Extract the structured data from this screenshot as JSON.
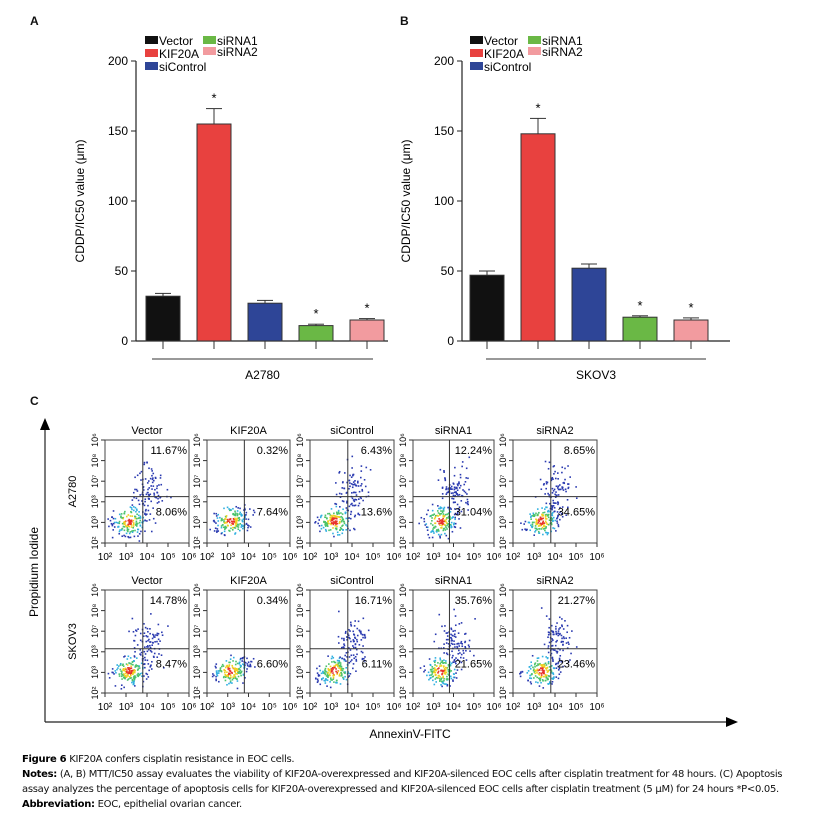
{
  "panels": {
    "a": "A",
    "b": "B",
    "c": "C"
  },
  "legend": {
    "items": [
      {
        "label": "Vector",
        "color": "#111111"
      },
      {
        "label": "KIF20A",
        "color": "#e8413f"
      },
      {
        "label": "siControl",
        "color": "#2e4597"
      },
      {
        "label": "siRNA1",
        "color": "#6ab845"
      },
      {
        "label": "siRNA2",
        "color": "#f29b9f"
      }
    ]
  },
  "chart_data": [
    {
      "type": "bar",
      "panel": "A",
      "ylabel": "CDDP/IC50 value (μm)",
      "xlabel": "A2780",
      "ylim": [
        0,
        200
      ],
      "yticks": [
        "0",
        "50",
        "100",
        "150",
        "200"
      ],
      "categories": [
        "Vector",
        "KIF20A",
        "siControl",
        "siRNA1",
        "siRNA2"
      ],
      "values": [
        32,
        155,
        27,
        11,
        15
      ],
      "errors": [
        2,
        11,
        2,
        1,
        1
      ],
      "significance": [
        "",
        "*",
        "",
        "*",
        "*"
      ]
    },
    {
      "type": "bar",
      "panel": "B",
      "ylabel": "CDDP/IC50 value (μm)",
      "xlabel": "SKOV3",
      "ylim": [
        0,
        200
      ],
      "yticks": [
        "0",
        "50",
        "100",
        "150",
        "200"
      ],
      "categories": [
        "Vector",
        "KIF20A",
        "siControl",
        "siRNA1",
        "siRNA2"
      ],
      "values": [
        47,
        148,
        52,
        17,
        15
      ],
      "errors": [
        3,
        11,
        3,
        1,
        1.5
      ],
      "significance": [
        "",
        "*",
        "",
        "*",
        "*"
      ]
    }
  ],
  "flow": {
    "y_axis_label": "Propidium Iodide",
    "x_axis_label": "AnnexinV-FITC",
    "x_ticks": [
      "10²",
      "10³",
      "10⁴",
      "10⁵",
      "10⁶"
    ],
    "y_ticks": [
      "10²",
      "10³",
      "10³",
      "10⁷",
      "10⁸",
      "10⁶"
    ],
    "rows": [
      {
        "label": "A2780",
        "plots": [
          {
            "title": "Vector",
            "upper_right": "11.67%",
            "lower_right": "8.06%"
          },
          {
            "title": "KIF20A",
            "upper_right": "0.32%",
            "lower_right": "7.64%"
          },
          {
            "title": "siControl",
            "upper_right": "6.43%",
            "lower_right": "13.6%"
          },
          {
            "title": "siRNA1",
            "upper_right": "12.24%",
            "lower_right": "31.04%"
          },
          {
            "title": "siRNA2",
            "upper_right": "8.65%",
            "lower_right": "34.65%"
          }
        ]
      },
      {
        "label": "SKOV3",
        "plots": [
          {
            "title": "Vector",
            "upper_right": "14.78%",
            "lower_right": "8.47%"
          },
          {
            "title": "KIF20A",
            "upper_right": "0.34%",
            "lower_right": "6.60%"
          },
          {
            "title": "siControl",
            "upper_right": "16.71%",
            "lower_right": "6.11%"
          },
          {
            "title": "siRNA1",
            "upper_right": "35.76%",
            "lower_right": "21.65%"
          },
          {
            "title": "siRNA2",
            "upper_right": "21.27%",
            "lower_right": "23.46%"
          }
        ]
      }
    ]
  },
  "caption": {
    "fig_label": "Figure 6",
    "fig_title": "KIF20A confers cisplatin resistance in EOC cells.",
    "notes_label": "Notes:",
    "notes_text": "(A, B) MTT/IC50 assay evaluates the viability of KIF20A-overexpressed and KIF20A-silenced EOC cells after cisplatin treatment for 48 hours. (C) Apoptosis assay analyzes the percentage of apoptosis cells for KIF20A-overexpressed and KIF20A-silenced EOC cells after cisplatin treatment (5 μM) for 24 hours *P<0.05.",
    "abbrev_label": "Abbreviation:",
    "abbrev_text": "EOC, epithelial ovarian cancer."
  }
}
